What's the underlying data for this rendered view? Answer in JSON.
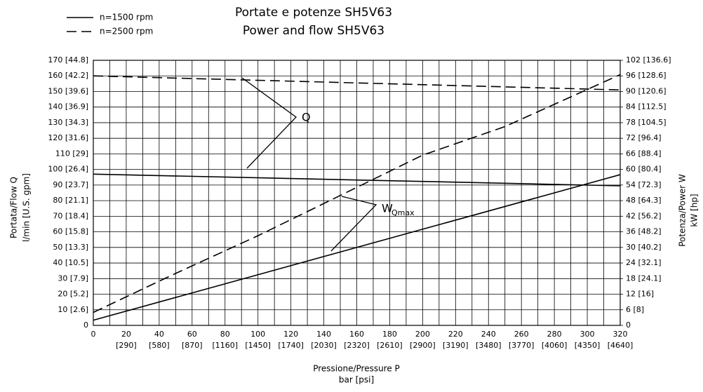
{
  "chart_data": {
    "type": "line",
    "title": [
      "Portate e potenze SH5V63",
      "Power and flow SH5V63"
    ],
    "xlabel": [
      "Pressione/Pressure P",
      "bar [psi]"
    ],
    "ylabel": [
      "Portata/Flow Q",
      "l/min [U.S. gpm]"
    ],
    "y2label": [
      "Potenza/Power W",
      "kW [hp]"
    ],
    "xlim": [
      0,
      320
    ],
    "xticks": [
      0,
      20,
      40,
      60,
      80,
      100,
      120,
      140,
      160,
      180,
      200,
      220,
      240,
      260,
      280,
      300,
      320
    ],
    "xticks_psi": [
      null,
      "[290]",
      "[580]",
      "[870]",
      "[1160]",
      "[1450]",
      "[1740]",
      "[2030]",
      "[2320]",
      "[2610]",
      "[2900]",
      "[3190]",
      "[3480]",
      "[3770]",
      "[4060]",
      "[4350]",
      "[4640]"
    ],
    "xminorticks": [
      10,
      30,
      50,
      70,
      90,
      110,
      130,
      150,
      170,
      190,
      210,
      230,
      250,
      270,
      290,
      310
    ],
    "ylim": [
      0,
      170
    ],
    "yticks": [
      {
        "value": 0,
        "label": "0"
      },
      {
        "value": 10,
        "label": "10 [2.6]"
      },
      {
        "value": 20,
        "label": "20 [5.2]"
      },
      {
        "value": 30,
        "label": "30 [7.9]"
      },
      {
        "value": 40,
        "label": "40 [10.5]"
      },
      {
        "value": 50,
        "label": "50 [13.3]"
      },
      {
        "value": 60,
        "label": "60 [15.8]"
      },
      {
        "value": 70,
        "label": "70 [18.4]"
      },
      {
        "value": 80,
        "label": "80 [21.1]"
      },
      {
        "value": 90,
        "label": "90 [23.7]"
      },
      {
        "value": 100,
        "label": "100 [26.4]"
      },
      {
        "value": 110,
        "label": "110 [29]"
      },
      {
        "value": 120,
        "label": "120 [31.6]"
      },
      {
        "value": 130,
        "label": "130 [34.3]"
      },
      {
        "value": 140,
        "label": "140 [36.9]"
      },
      {
        "value": 150,
        "label": "150 [39.6]"
      },
      {
        "value": 160,
        "label": "160 [42.2]"
      },
      {
        "value": 170,
        "label": "170 [44.8]"
      }
    ],
    "y2lim": [
      0,
      102
    ],
    "y2ticks": [
      {
        "value": 0,
        "label": "0"
      },
      {
        "value": 6,
        "label": "6 [8]"
      },
      {
        "value": 12,
        "label": "12 [16]"
      },
      {
        "value": 18,
        "label": "18 [24.1]"
      },
      {
        "value": 24,
        "label": "24 [32.1]"
      },
      {
        "value": 30,
        "label": "30 [40.2]"
      },
      {
        "value": 36,
        "label": "36 [48.2]"
      },
      {
        "value": 42,
        "label": "42 [56.2]"
      },
      {
        "value": 48,
        "label": "48 [64.3]"
      },
      {
        "value": 54,
        "label": "54 [72.3]"
      },
      {
        "value": 60,
        "label": "60 [80.4]"
      },
      {
        "value": 66,
        "label": "66 [88.4]"
      },
      {
        "value": 72,
        "label": "72 [96.4]"
      },
      {
        "value": 78,
        "label": "78 [104.5]"
      },
      {
        "value": 84,
        "label": "84 [112.5]"
      },
      {
        "value": 90,
        "label": "90 [120.6]"
      },
      {
        "value": 96,
        "label": "96 [128.6]"
      },
      {
        "value": 102,
        "label": "102 [136.6]"
      }
    ],
    "grid": true,
    "legend": [
      "n=1500 rpm",
      "n=2500 rpm"
    ],
    "legend_position": "top-left",
    "series": [
      {
        "color": "#000000",
        "dash": "solid",
        "x": [
          0,
          320
        ],
        "values": [
          97,
          89.5
        ]
      },
      {
        "color": "#000000",
        "dash": "dashed",
        "x": [
          0,
          320
        ],
        "values": [
          160,
          151
        ]
      },
      {
        "color": "#000000",
        "dash": "solid",
        "axis": "y2",
        "x": [
          0,
          320
        ],
        "values": [
          2,
          58
        ]
      },
      {
        "color": "#000000",
        "dash": "dashed",
        "axis": "y2",
        "x": [
          0,
          50,
          100,
          150,
          200,
          250,
          320
        ],
        "values": [
          5,
          20,
          34.5,
          50,
          65.5,
          76.5,
          96.5
        ]
      }
    ],
    "annotations": [
      {
        "text": "Q"
      },
      {
        "text": "W",
        "sub": "Qmax"
      }
    ]
  }
}
